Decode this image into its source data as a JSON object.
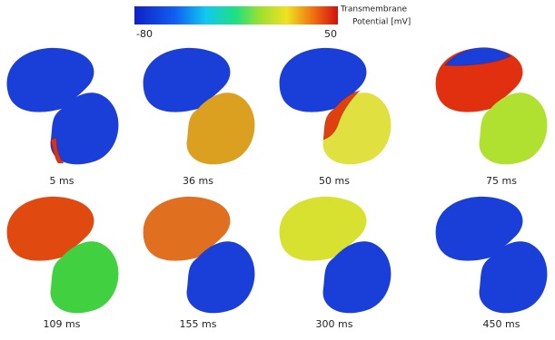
{
  "colorbar": {
    "min": "-80",
    "max": "50",
    "label": [
      "Transmembrane",
      "Potential [mV]"
    ]
  },
  "panels": [
    {
      "label": "5 ms"
    },
    {
      "label": "36 ms"
    },
    {
      "label": "50 ms"
    },
    {
      "label": "75 ms"
    },
    {
      "label": "109 ms"
    },
    {
      "label": "155 ms"
    },
    {
      "label": "300 ms"
    },
    {
      "label": "450 ms"
    }
  ]
}
